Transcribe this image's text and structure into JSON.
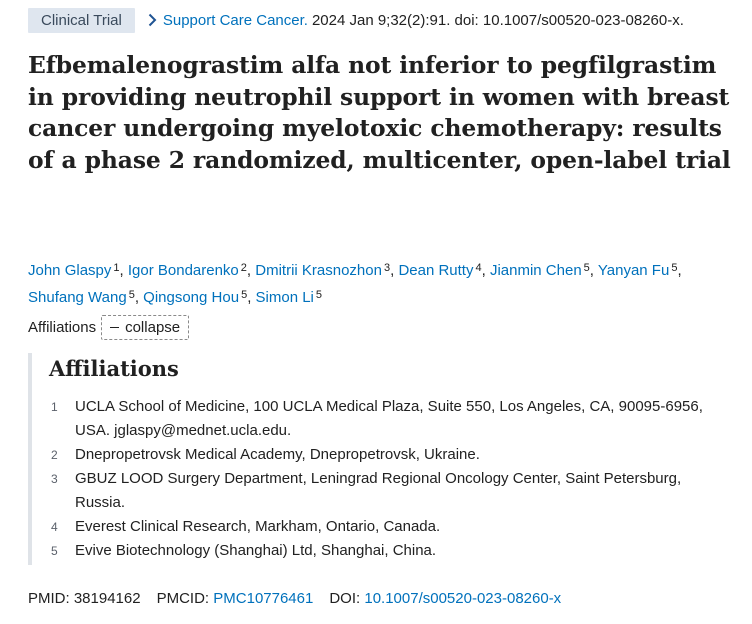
{
  "header": {
    "badge": "Clinical Trial",
    "journal": "Support Care Cancer.",
    "citation_rest": "2024 Jan 9;32(2):91. doi: 10.1007/s00520-023-08260-x."
  },
  "title": "Efbemalenograstim alfa not inferior to pegfilgrastim in providing neutrophil support in women with breast cancer undergoing myelotoxic chemotherapy: results of a phase 2 randomized, multicenter, open-label trial",
  "authors": [
    {
      "name": "John Glaspy",
      "sup": "1"
    },
    {
      "name": "Igor Bondarenko",
      "sup": "2"
    },
    {
      "name": "Dmitrii Krasnozhon",
      "sup": "3"
    },
    {
      "name": "Dean Rutty",
      "sup": "4"
    },
    {
      "name": "Jianmin Chen",
      "sup": "5"
    },
    {
      "name": "Yanyan Fu",
      "sup": "5"
    },
    {
      "name": "Shufang Wang",
      "sup": "5"
    },
    {
      "name": "Qingsong Hou",
      "sup": "5"
    },
    {
      "name": "Simon Li",
      "sup": "5"
    }
  ],
  "affiliations_toggle": {
    "label": "Affiliations",
    "button": "collapse"
  },
  "affiliations": {
    "heading": "Affiliations",
    "items": [
      {
        "num": "1",
        "text": "UCLA School of Medicine, 100 UCLA Medical Plaza, Suite 550, Los Angeles, CA, 90095-6956, USA. jglaspy@mednet.ucla.edu."
      },
      {
        "num": "2",
        "text": "Dnepropetrovsk Medical Academy, Dnepropetrovsk, Ukraine."
      },
      {
        "num": "3",
        "text": "GBUZ LOOD Surgery Department, Leningrad Regional Oncology Center, Saint Petersburg, Russia."
      },
      {
        "num": "4",
        "text": "Everest Clinical Research, Markham, Ontario, Canada."
      },
      {
        "num": "5",
        "text": "Evive Biotechnology (Shanghai) Ltd, Shanghai, China."
      }
    ]
  },
  "identifiers": {
    "pmid_label": "PMID:",
    "pmid": "38194162",
    "pmcid_label": "PMCID:",
    "pmcid": "PMC10776461",
    "doi_label": "DOI:",
    "doi": "10.1007/s00520-023-08260-x"
  },
  "colors": {
    "link": "#0071bc",
    "badge_bg": "#dfe6ef",
    "text": "#212121"
  }
}
